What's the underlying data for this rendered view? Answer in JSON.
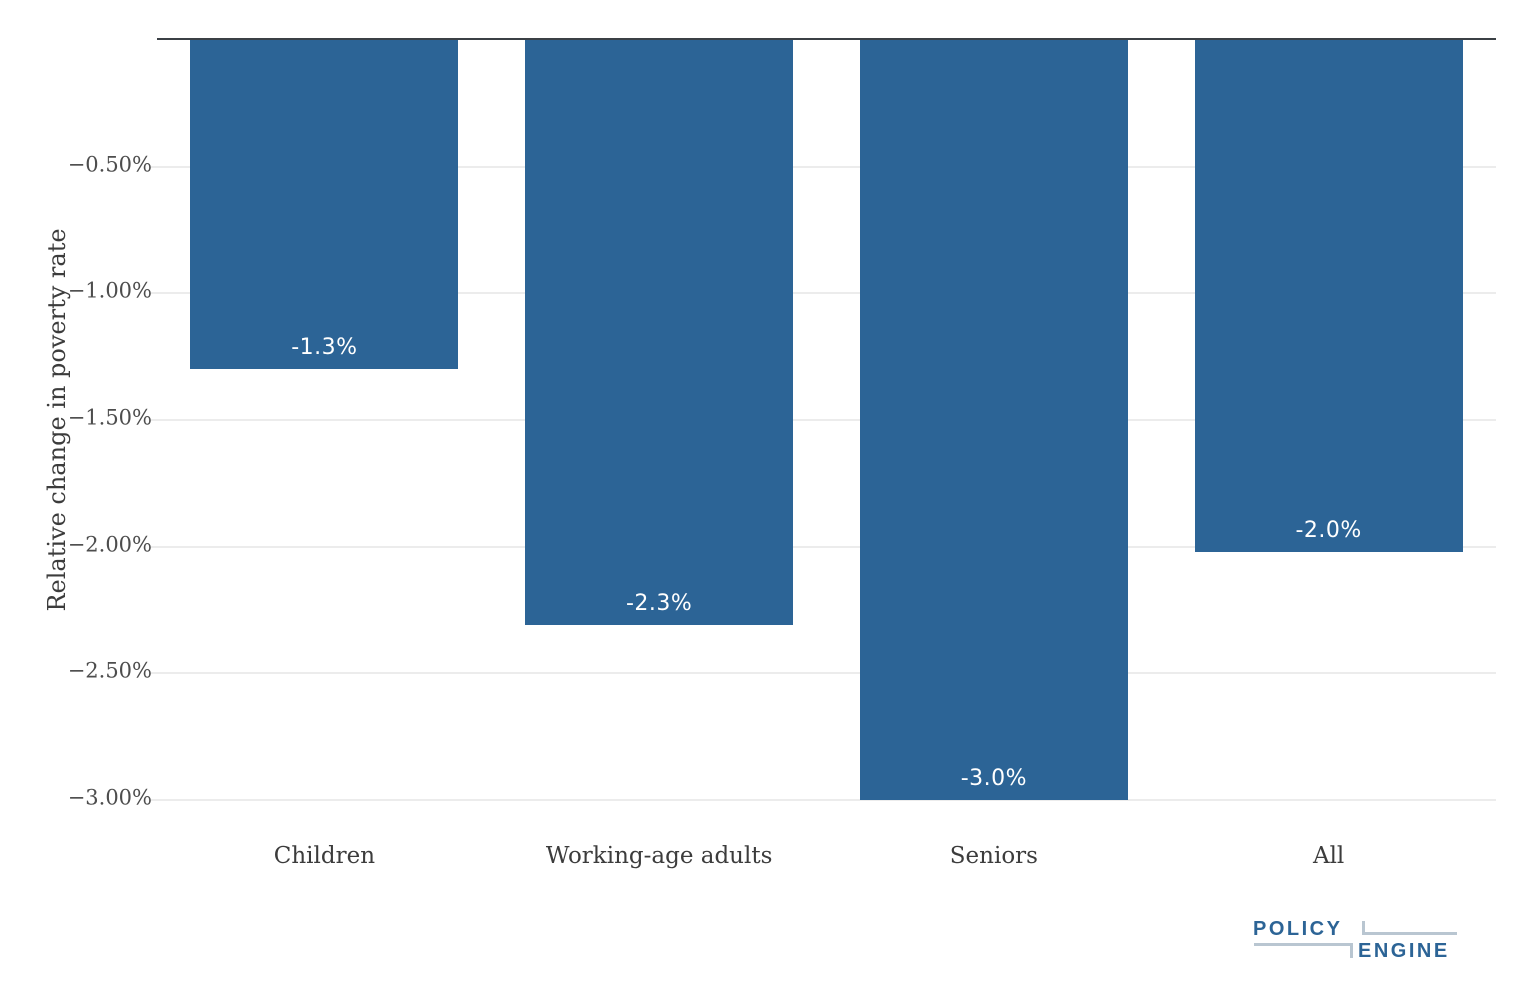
{
  "chart_data": {
    "type": "bar",
    "categories": [
      "Children",
      "Working-age adults",
      "Seniors",
      "All"
    ],
    "values": [
      -1.3,
      -2.3,
      -3.0,
      -2.0
    ],
    "values_precise": [
      -1.3,
      -2.31,
      -3.0,
      -2.02
    ],
    "bar_labels": [
      "-1.3%",
      "-2.3%",
      "-3.0%",
      "-2.0%"
    ],
    "title": "",
    "xlabel": "",
    "ylabel": "Relative change in poverty rate",
    "ylim": [
      -3.0,
      0
    ],
    "yticks": [
      -0.5,
      -1.0,
      -1.5,
      -2.0,
      -2.5,
      -3.0
    ],
    "ytick_labels": [
      "−0.50%",
      "−1.00%",
      "−1.50%",
      "−2.00%",
      "−2.50%",
      "−3.00%"
    ],
    "grid": true,
    "legend": "none",
    "bar_color": "#2C6496",
    "bar_label_color": "#FFFFFF",
    "gridline_color": "#ECECEC",
    "zero_line_color": "#3B4045"
  },
  "branding": {
    "logo_top": "POLICY",
    "logo_bottom": "ENGINE",
    "logo_blue": "#2C6496",
    "logo_gray": "#B9C6D1"
  }
}
